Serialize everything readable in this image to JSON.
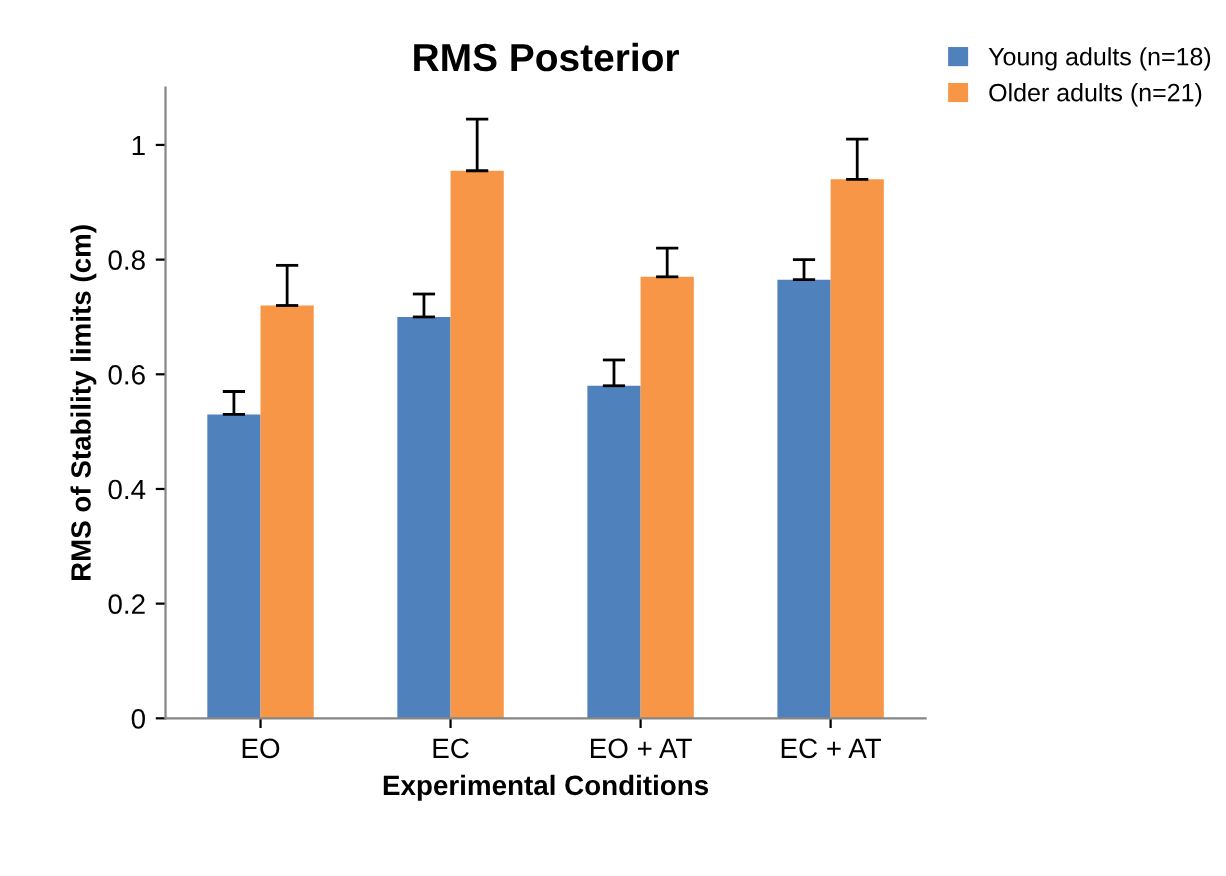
{
  "chart_data": {
    "type": "bar",
    "title": "RMS Posterior",
    "xlabel": "Experimental Conditions",
    "ylabel": "RMS of Stability limits (cm)",
    "categories": [
      "EO",
      "EC",
      "EO + AT",
      "EC + AT"
    ],
    "series": [
      {
        "name": "Young adults (n=18)",
        "color": "#4f81bd",
        "values": [
          0.53,
          0.7,
          0.58,
          0.765
        ],
        "errors": [
          [
            0.53,
            0.57
          ],
          [
            0.7,
            0.74
          ],
          [
            0.58,
            0.625
          ],
          [
            0.765,
            0.8
          ]
        ]
      },
      {
        "name": "Older adults (n=21)",
        "color": "#f79646",
        "values": [
          0.72,
          0.955,
          0.77,
          0.94
        ],
        "errors": [
          [
            0.72,
            0.79
          ],
          [
            0.955,
            1.045
          ],
          [
            0.77,
            0.82
          ],
          [
            0.94,
            1.01
          ]
        ]
      }
    ],
    "ylim": [
      0,
      1.1
    ],
    "yticks": [
      0,
      0.2,
      0.4,
      0.6,
      0.8,
      1
    ],
    "grid": false,
    "legend": "top right"
  }
}
